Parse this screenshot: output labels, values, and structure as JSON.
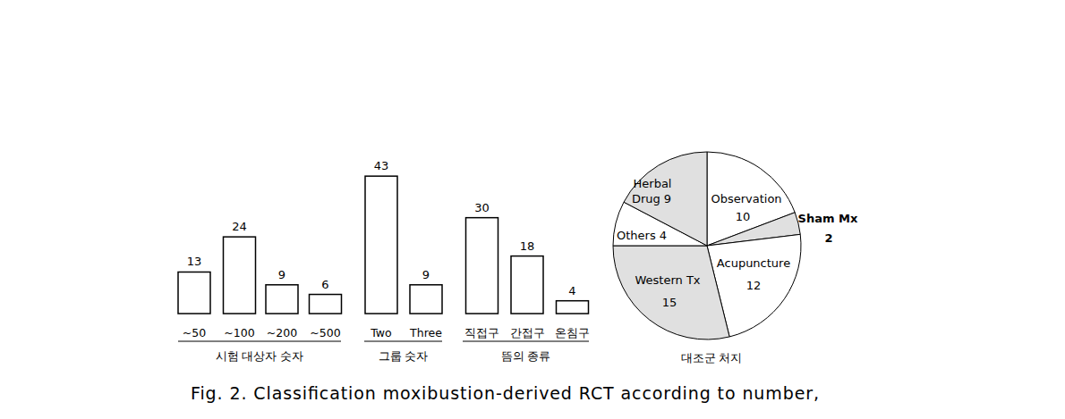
{
  "chart_data": [
    {
      "type": "bar",
      "xlabel": "시험 대상자 숫자",
      "categories": [
        "~50",
        "~100",
        "~200",
        "~500"
      ],
      "values": [
        13,
        24,
        9,
        6
      ],
      "color": "#ffffff",
      "ylim": [
        0,
        45
      ],
      "data_labels": true,
      "tick_labels": "x"
    },
    {
      "type": "bar",
      "xlabel": "그룹 숫자",
      "categories": [
        "Two",
        "Three"
      ],
      "values": [
        43,
        9
      ],
      "color": "#ffffff",
      "ylim": [
        0,
        45
      ],
      "data_labels": true,
      "tick_labels": "x"
    },
    {
      "type": "bar",
      "xlabel": "뜸의 종류",
      "categories": [
        "직접구",
        "간접구",
        "온침구"
      ],
      "values": [
        30,
        18,
        4
      ],
      "color": "#ffffff",
      "ylim": [
        0,
        45
      ],
      "data_labels": true,
      "tick_labels": "x"
    },
    {
      "type": "pie",
      "xlabel": "대조군 처지",
      "categories": [
        "Observation",
        "Sham Mx",
        "Acupuncture",
        "Western Tx",
        "Others",
        "Herbal Drug"
      ],
      "values": [
        10,
        2,
        12,
        15,
        4,
        9
      ],
      "colors": [
        "#ffffff",
        "#e0e0e0",
        "#ffffff",
        "#e0e0e0",
        "#ffffff",
        "#e0e0e0"
      ],
      "data_labels": true
    }
  ],
  "caption": "Fig. 2. Classification moxibustion-derived RCT according to number,"
}
